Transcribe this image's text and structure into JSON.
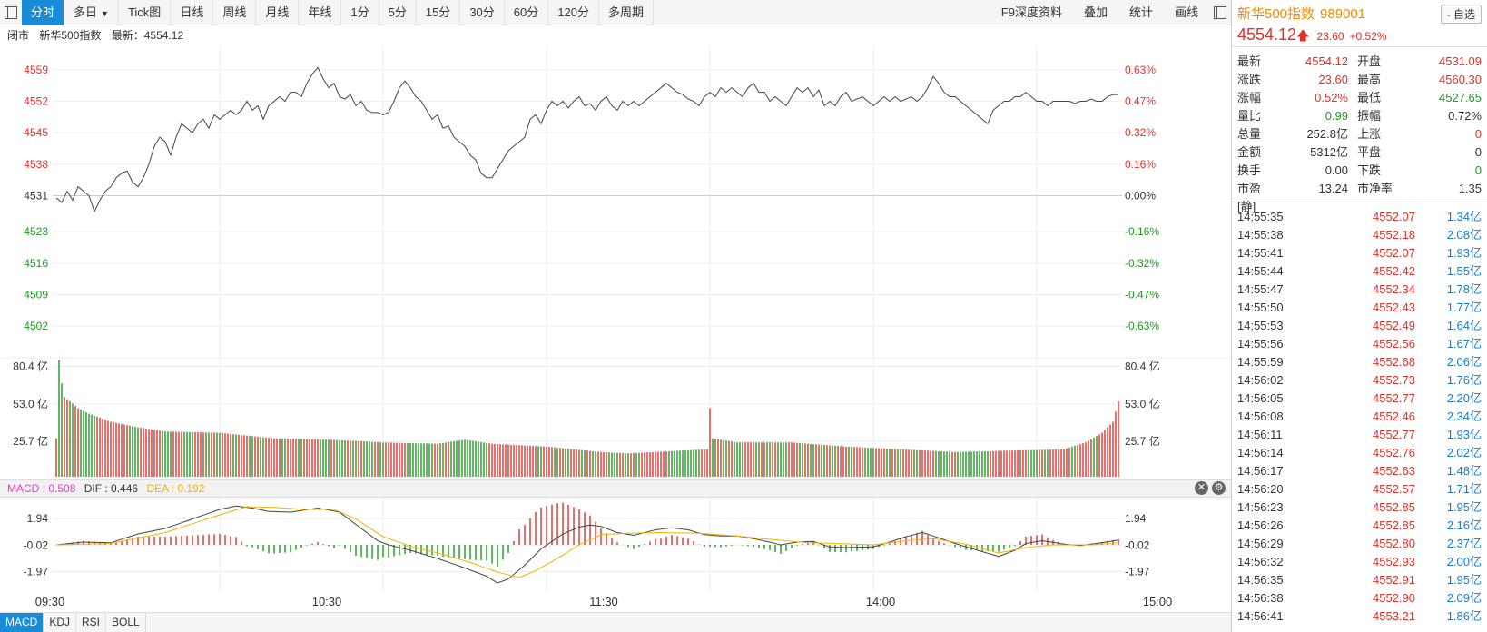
{
  "toolbar": {
    "tabs": [
      "分时",
      "多日",
      "Tick图",
      "日线",
      "周线",
      "月线",
      "年线",
      "1分",
      "5分",
      "15分",
      "30分",
      "60分",
      "120分",
      "多周期"
    ],
    "right_links": [
      "F9深度资料",
      "叠加",
      "统计",
      "画线"
    ]
  },
  "subheader": {
    "status": "闭市",
    "name": "新华500指数",
    "latest": "最新：4554.12"
  },
  "price_axis_left": [
    "4559",
    "4552",
    "4545",
    "4538",
    "4531",
    "4523",
    "4516",
    "4509",
    "4502"
  ],
  "price_axis_right": [
    "0.63%",
    "0.47%",
    "0.32%",
    "0.16%",
    "0.00%",
    "-0.16%",
    "-0.32%",
    "-0.47%",
    "-0.63%"
  ],
  "volume_axis": [
    "80.4 亿",
    "53.0 亿",
    "25.7 亿"
  ],
  "macd_axis": [
    "1.94",
    "-0.02",
    "-1.97"
  ],
  "macd_labels": {
    "macd": "MACD : 0.508",
    "dif": "DIF : 0.446",
    "dea": "DEA : 0.192"
  },
  "time_axis": [
    "09:30",
    "10:30",
    "11:30",
    "14:00",
    "15:00"
  ],
  "bottom_tabs": [
    "MACD",
    "KDJ",
    "RSI",
    "BOLL"
  ],
  "colors": {
    "up": "#e0302a",
    "down": "#1e9a1e",
    "accent": "#1a8bd7",
    "dea": "#f0b400",
    "macd_label": "#e040c0"
  },
  "panel": {
    "name": "新华500指数",
    "code": "989001",
    "fav_label": "- 自选",
    "price": "4554.12",
    "change": "23.60",
    "change_pct": "+0.52%",
    "stats": [
      {
        "l1": "最新",
        "v1": "4554.12",
        "c1": "red",
        "l2": "开盘",
        "v2": "4531.09",
        "c2": "red"
      },
      {
        "l1": "涨跌",
        "v1": "23.60",
        "c1": "red",
        "l2": "最高",
        "v2": "4560.30",
        "c2": "red"
      },
      {
        "l1": "涨幅",
        "v1": "0.52%",
        "c1": "red",
        "l2": "最低",
        "v2": "4527.65",
        "c2": "green"
      },
      {
        "l1": "量比",
        "v1": "0.99",
        "c1": "green",
        "l2": "振幅",
        "v2": "0.72%",
        "c2": "dark"
      },
      {
        "l1": "总量",
        "v1": "252.8亿",
        "c1": "dark",
        "l2": "上涨",
        "v2": "0",
        "c2": "red"
      },
      {
        "l1": "金额",
        "v1": "5312亿",
        "c1": "dark",
        "l2": "平盘",
        "v2": "0",
        "c2": "dark"
      },
      {
        "l1": "换手",
        "v1": "0.00",
        "c1": "dark",
        "l2": "下跌",
        "v2": "0",
        "c2": "green"
      },
      {
        "l1": "市盈[静]",
        "v1": "13.24",
        "c1": "dark",
        "l2": "市净率",
        "v2": "1.35",
        "c2": "dark"
      }
    ],
    "ticks": [
      {
        "t": "14:55:35",
        "p": "4552.07",
        "a": "1.34亿"
      },
      {
        "t": "14:55:38",
        "p": "4552.18",
        "a": "2.08亿"
      },
      {
        "t": "14:55:41",
        "p": "4552.07",
        "a": "1.93亿"
      },
      {
        "t": "14:55:44",
        "p": "4552.42",
        "a": "1.55亿"
      },
      {
        "t": "14:55:47",
        "p": "4552.34",
        "a": "1.78亿"
      },
      {
        "t": "14:55:50",
        "p": "4552.43",
        "a": "1.77亿"
      },
      {
        "t": "14:55:53",
        "p": "4552.49",
        "a": "1.64亿"
      },
      {
        "t": "14:55:56",
        "p": "4552.56",
        "a": "1.67亿"
      },
      {
        "t": "14:55:59",
        "p": "4552.68",
        "a": "2.06亿"
      },
      {
        "t": "14:56:02",
        "p": "4552.73",
        "a": "1.76亿"
      },
      {
        "t": "14:56:05",
        "p": "4552.77",
        "a": "2.20亿"
      },
      {
        "t": "14:56:08",
        "p": "4552.46",
        "a": "2.34亿"
      },
      {
        "t": "14:56:11",
        "p": "4552.77",
        "a": "1.93亿"
      },
      {
        "t": "14:56:14",
        "p": "4552.76",
        "a": "2.02亿"
      },
      {
        "t": "14:56:17",
        "p": "4552.63",
        "a": "1.48亿"
      },
      {
        "t": "14:56:20",
        "p": "4552.57",
        "a": "1.71亿"
      },
      {
        "t": "14:56:23",
        "p": "4552.85",
        "a": "1.95亿"
      },
      {
        "t": "14:56:26",
        "p": "4552.85",
        "a": "2.16亿"
      },
      {
        "t": "14:56:29",
        "p": "4552.80",
        "a": "2.37亿"
      },
      {
        "t": "14:56:32",
        "p": "4552.93",
        "a": "2.00亿"
      },
      {
        "t": "14:56:35",
        "p": "4552.91",
        "a": "1.95亿"
      },
      {
        "t": "14:56:38",
        "p": "4552.90",
        "a": "2.09亿"
      },
      {
        "t": "14:56:41",
        "p": "4553.21",
        "a": "1.86亿"
      }
    ]
  },
  "chart_data": {
    "type": "line",
    "prev_close": 4531,
    "price_ylim": [
      4498,
      4563
    ],
    "volume_ylim": [
      0,
      90
    ],
    "macd_ylim": [
      -3.2,
      3.2
    ],
    "price_keypoints": [
      [
        0,
        4530.5
      ],
      [
        2,
        4529.5
      ],
      [
        4,
        4532
      ],
      [
        6,
        4530
      ],
      [
        8,
        4533
      ],
      [
        10,
        4532
      ],
      [
        12,
        4531
      ],
      [
        14,
        4527.5
      ],
      [
        16,
        4530
      ],
      [
        18,
        4532
      ],
      [
        20,
        4533
      ],
      [
        22,
        4535
      ],
      [
        24,
        4536
      ],
      [
        26,
        4536.5
      ],
      [
        28,
        4534
      ],
      [
        30,
        4533
      ],
      [
        32,
        4535
      ],
      [
        34,
        4538
      ],
      [
        36,
        4542
      ],
      [
        38,
        4544
      ],
      [
        40,
        4543
      ],
      [
        42,
        4540
      ],
      [
        44,
        4544
      ],
      [
        46,
        4547
      ],
      [
        48,
        4546
      ],
      [
        50,
        4545
      ],
      [
        52,
        4547
      ],
      [
        54,
        4548
      ],
      [
        56,
        4546
      ],
      [
        58,
        4549
      ],
      [
        60,
        4548
      ],
      [
        62,
        4549
      ],
      [
        64,
        4550
      ],
      [
        66,
        4549
      ],
      [
        68,
        4550
      ],
      [
        70,
        4552
      ],
      [
        72,
        4550
      ],
      [
        74,
        4551
      ],
      [
        76,
        4548
      ],
      [
        78,
        4551
      ],
      [
        80,
        4552
      ],
      [
        82,
        4553
      ],
      [
        84,
        4552
      ],
      [
        86,
        4554
      ],
      [
        88,
        4554
      ],
      [
        90,
        4553
      ],
      [
        92,
        4556
      ],
      [
        94,
        4558
      ],
      [
        96,
        4559.5
      ],
      [
        98,
        4557
      ],
      [
        100,
        4555
      ],
      [
        102,
        4556
      ],
      [
        104,
        4553
      ],
      [
        106,
        4552.5
      ],
      [
        108,
        4553.5
      ],
      [
        110,
        4551
      ],
      [
        112,
        4552
      ],
      [
        114,
        4550
      ],
      [
        116,
        4549.5
      ],
      [
        118,
        4549.5
      ],
      [
        120,
        4549
      ],
      [
        122,
        4549.5
      ],
      [
        124,
        4552
      ],
      [
        126,
        4555
      ],
      [
        128,
        4556.5
      ],
      [
        130,
        4555
      ],
      [
        132,
        4553
      ],
      [
        134,
        4552
      ],
      [
        136,
        4550
      ],
      [
        138,
        4548
      ],
      [
        140,
        4549
      ],
      [
        142,
        4546
      ],
      [
        144,
        4546.5
      ],
      [
        146,
        4544
      ],
      [
        148,
        4543
      ],
      [
        150,
        4542
      ],
      [
        152,
        4540
      ],
      [
        154,
        4539
      ],
      [
        156,
        4536
      ],
      [
        158,
        4535
      ],
      [
        160,
        4535
      ],
      [
        162,
        4537
      ],
      [
        164,
        4539
      ],
      [
        166,
        4541
      ],
      [
        168,
        4542
      ],
      [
        170,
        4543
      ],
      [
        172,
        4544
      ],
      [
        174,
        4548
      ],
      [
        176,
        4549
      ],
      [
        178,
        4547
      ],
      [
        180,
        4550
      ],
      [
        182,
        4552
      ],
      [
        184,
        4551
      ],
      [
        186,
        4552
      ],
      [
        188,
        4550.5
      ],
      [
        190,
        4552
      ],
      [
        192,
        4553
      ],
      [
        194,
        4551
      ],
      [
        196,
        4551.5
      ],
      [
        198,
        4550
      ],
      [
        200,
        4552
      ],
      [
        202,
        4553
      ],
      [
        204,
        4551
      ],
      [
        206,
        4550
      ],
      [
        208,
        4552
      ],
      [
        210,
        4551
      ],
      [
        212,
        4552
      ],
      [
        214,
        4551
      ],
      [
        216,
        4552
      ],
      [
        218,
        4553
      ],
      [
        220,
        4554
      ],
      [
        222,
        4555
      ],
      [
        224,
        4556
      ],
      [
        226,
        4555
      ],
      [
        228,
        4554
      ],
      [
        230,
        4553.5
      ],
      [
        232,
        4552.5
      ],
      [
        234,
        4552
      ],
      [
        236,
        4551
      ],
      [
        238,
        4553
      ],
      [
        240,
        4554
      ],
      [
        242,
        4553
      ],
      [
        244,
        4555
      ],
      [
        246,
        4554
      ],
      [
        248,
        4555
      ],
      [
        250,
        4554
      ],
      [
        252,
        4553
      ],
      [
        254,
        4555
      ],
      [
        256,
        4556
      ],
      [
        258,
        4554
      ],
      [
        260,
        4554
      ],
      [
        262,
        4552
      ],
      [
        264,
        4553
      ],
      [
        266,
        4552
      ],
      [
        268,
        4551
      ],
      [
        270,
        4553
      ],
      [
        272,
        4555
      ],
      [
        274,
        4554
      ],
      [
        276,
        4555
      ],
      [
        278,
        4553
      ],
      [
        280,
        4554.5
      ],
      [
        282,
        4551
      ],
      [
        284,
        4552
      ],
      [
        286,
        4551
      ],
      [
        288,
        4553
      ],
      [
        290,
        4554
      ],
      [
        292,
        4552
      ],
      [
        294,
        4552.5
      ],
      [
        296,
        4553
      ],
      [
        298,
        4552
      ],
      [
        300,
        4551
      ],
      [
        302,
        4552
      ],
      [
        304,
        4553
      ],
      [
        306,
        4552
      ],
      [
        308,
        4553
      ],
      [
        310,
        4552
      ],
      [
        312,
        4552.5
      ],
      [
        314,
        4553
      ],
      [
        316,
        4552
      ],
      [
        318,
        4553
      ],
      [
        320,
        4555
      ],
      [
        322,
        4557.5
      ],
      [
        324,
        4556
      ],
      [
        326,
        4554
      ],
      [
        328,
        4553
      ],
      [
        330,
        4553
      ],
      [
        332,
        4552
      ],
      [
        334,
        4551
      ],
      [
        336,
        4550
      ],
      [
        338,
        4549
      ],
      [
        340,
        4548
      ],
      [
        342,
        4547
      ],
      [
        344,
        4550
      ],
      [
        346,
        4551
      ],
      [
        348,
        4552
      ],
      [
        350,
        4552
      ],
      [
        352,
        4553
      ],
      [
        354,
        4553
      ],
      [
        356,
        4554
      ],
      [
        358,
        4553
      ],
      [
        360,
        4552
      ],
      [
        362,
        4552
      ],
      [
        364,
        4551
      ],
      [
        366,
        4552
      ],
      [
        368,
        4552
      ],
      [
        370,
        4552
      ],
      [
        372,
        4552
      ],
      [
        374,
        4551.5
      ],
      [
        376,
        4552
      ],
      [
        378,
        4552
      ],
      [
        380,
        4552.5
      ],
      [
        382,
        4552
      ],
      [
        384,
        4552
      ],
      [
        386,
        4553
      ],
      [
        388,
        4553.5
      ],
      [
        390,
        4553.5
      ]
    ],
    "volume_keypoints": [
      [
        0,
        28
      ],
      [
        1,
        85
      ],
      [
        2,
        68
      ],
      [
        3,
        58
      ],
      [
        5,
        55
      ],
      [
        8,
        50
      ],
      [
        12,
        46
      ],
      [
        16,
        43
      ],
      [
        20,
        40
      ],
      [
        30,
        36
      ],
      [
        40,
        33
      ],
      [
        60,
        32
      ],
      [
        80,
        28
      ],
      [
        100,
        27
      ],
      [
        120,
        25
      ],
      [
        140,
        24
      ],
      [
        150,
        27
      ],
      [
        160,
        24
      ],
      [
        180,
        22
      ],
      [
        200,
        18
      ],
      [
        210,
        17
      ],
      [
        220,
        18
      ],
      [
        239,
        20
      ],
      [
        240,
        50
      ],
      [
        241,
        28
      ],
      [
        250,
        25
      ],
      [
        270,
        25
      ],
      [
        290,
        22
      ],
      [
        310,
        20
      ],
      [
        330,
        18
      ],
      [
        350,
        19
      ],
      [
        370,
        20
      ],
      [
        378,
        25
      ],
      [
        384,
        32
      ],
      [
        388,
        40
      ],
      [
        390,
        55
      ]
    ],
    "dif_keypoints": [
      [
        0,
        0
      ],
      [
        10,
        0.2
      ],
      [
        20,
        0.15
      ],
      [
        30,
        0.8
      ],
      [
        40,
        1.2
      ],
      [
        50,
        1.9
      ],
      [
        60,
        2.6
      ],
      [
        66,
        2.85
      ],
      [
        72,
        2.7
      ],
      [
        78,
        2.45
      ],
      [
        86,
        2.4
      ],
      [
        96,
        2.7
      ],
      [
        104,
        2.4
      ],
      [
        112,
        1.2
      ],
      [
        118,
        0.3
      ],
      [
        122,
        0.0
      ],
      [
        130,
        -0.4
      ],
      [
        140,
        -1.0
      ],
      [
        150,
        -1.7
      ],
      [
        158,
        -2.3
      ],
      [
        162,
        -2.8
      ],
      [
        166,
        -2.5
      ],
      [
        172,
        -1.5
      ],
      [
        178,
        -0.3
      ],
      [
        186,
        0.8
      ],
      [
        192,
        1.3
      ],
      [
        196,
        1.45
      ],
      [
        200,
        1.35
      ],
      [
        206,
        0.9
      ],
      [
        212,
        0.7
      ],
      [
        220,
        1.1
      ],
      [
        226,
        1.25
      ],
      [
        232,
        1.1
      ],
      [
        238,
        0.75
      ],
      [
        244,
        0.65
      ],
      [
        250,
        0.65
      ],
      [
        256,
        0.45
      ],
      [
        262,
        0.2
      ],
      [
        266,
        0.0
      ],
      [
        272,
        0.2
      ],
      [
        278,
        0.25
      ],
      [
        284,
        -0.15
      ],
      [
        290,
        -0.2
      ],
      [
        300,
        -0.15
      ],
      [
        306,
        0.2
      ],
      [
        312,
        0.6
      ],
      [
        318,
        0.9
      ],
      [
        322,
        0.65
      ],
      [
        330,
        0.1
      ],
      [
        340,
        -0.5
      ],
      [
        346,
        -0.85
      ],
      [
        352,
        -0.4
      ],
      [
        356,
        0.1
      ],
      [
        362,
        0.3
      ],
      [
        370,
        0.05
      ],
      [
        376,
        -0.05
      ],
      [
        382,
        0.1
      ],
      [
        390,
        0.35
      ]
    ],
    "dea_keypoints": [
      [
        0,
        0
      ],
      [
        20,
        0.1
      ],
      [
        40,
        0.9
      ],
      [
        60,
        2.2
      ],
      [
        70,
        2.8
      ],
      [
        80,
        2.75
      ],
      [
        92,
        2.6
      ],
      [
        102,
        2.6
      ],
      [
        110,
        1.9
      ],
      [
        120,
        0.6
      ],
      [
        130,
        -0.1
      ],
      [
        142,
        -0.7
      ],
      [
        152,
        -1.3
      ],
      [
        162,
        -2.0
      ],
      [
        170,
        -2.4
      ],
      [
        176,
        -1.9
      ],
      [
        184,
        -1.0
      ],
      [
        192,
        0.0
      ],
      [
        200,
        0.75
      ],
      [
        210,
        0.85
      ],
      [
        222,
        0.9
      ],
      [
        236,
        0.85
      ],
      [
        250,
        0.65
      ],
      [
        262,
        0.4
      ],
      [
        276,
        0.15
      ],
      [
        286,
        0.1
      ],
      [
        300,
        0.0
      ],
      [
        312,
        0.3
      ],
      [
        322,
        0.45
      ],
      [
        334,
        0.05
      ],
      [
        346,
        -0.6
      ],
      [
        356,
        -0.2
      ],
      [
        366,
        0.0
      ],
      [
        380,
        0.0
      ],
      [
        390,
        0.15
      ]
    ]
  }
}
